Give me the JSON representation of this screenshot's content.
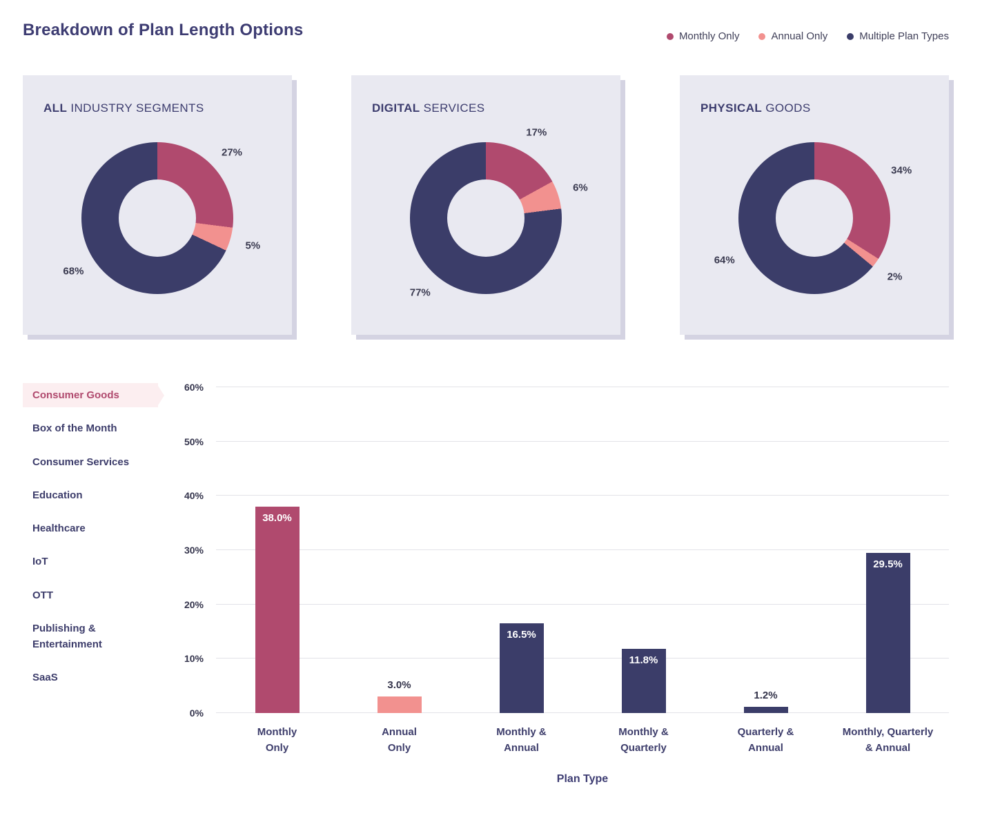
{
  "header": {
    "title": "Breakdown of Plan Length Options"
  },
  "colors": {
    "monthly": "#b04a6e",
    "annual": "#f2918f",
    "multiple": "#3b3d69"
  },
  "legend": [
    {
      "key": "monthly",
      "label": "Monthly Only"
    },
    {
      "key": "annual",
      "label": "Annual Only"
    },
    {
      "key": "multiple",
      "label": "Multiple Plan Types"
    }
  ],
  "donut_charts": [
    {
      "title_emphasis": "ALL",
      "title_rest": " INDUSTRY SEGMENTS",
      "segments": [
        {
          "key": "monthly",
          "value": 27,
          "label": "27%"
        },
        {
          "key": "annual",
          "value": 5,
          "label": "5%"
        },
        {
          "key": "multiple",
          "value": 68,
          "label": "68%"
        }
      ]
    },
    {
      "title_emphasis": "DIGITAL",
      "title_rest": " SERVICES",
      "segments": [
        {
          "key": "monthly",
          "value": 17,
          "label": "17%"
        },
        {
          "key": "annual",
          "value": 6,
          "label": "6%"
        },
        {
          "key": "multiple",
          "value": 77,
          "label": "77%"
        }
      ]
    },
    {
      "title_emphasis": "PHYSICAL",
      "title_rest": " GOODS",
      "segments": [
        {
          "key": "monthly",
          "value": 34,
          "label": "34%"
        },
        {
          "key": "annual",
          "value": 2,
          "label": "2%"
        },
        {
          "key": "multiple",
          "value": 64,
          "label": "64%"
        }
      ]
    }
  ],
  "sidebar": {
    "items": [
      {
        "label": "Consumer Goods",
        "selected": true
      },
      {
        "label": "Box of the Month",
        "selected": false
      },
      {
        "label": "Consumer Services",
        "selected": false
      },
      {
        "label": "Education",
        "selected": false
      },
      {
        "label": "Healthcare",
        "selected": false
      },
      {
        "label": "IoT",
        "selected": false
      },
      {
        "label": "OTT",
        "selected": false
      },
      {
        "label": "Publishing & Entertainment",
        "selected": false
      },
      {
        "label": "SaaS",
        "selected": false
      }
    ]
  },
  "chart_data": {
    "type": "bar",
    "xlabel": "Plan Type",
    "ylim": [
      0,
      60
    ],
    "ytick_step": 10,
    "yticks": [
      "0%",
      "10%",
      "20%",
      "30%",
      "40%",
      "50%",
      "60%"
    ],
    "grid": true,
    "categories": [
      "Monthly\nOnly",
      "Annual\nOnly",
      "Monthly &\nAnnual",
      "Monthly &\nQuarterly",
      "Quarterly &\nAnnual",
      "Monthly, Quarterly\n& Annual"
    ],
    "values": [
      38.0,
      3.0,
      16.5,
      11.8,
      1.2,
      29.5
    ],
    "value_labels": [
      "38.0%",
      "3.0%",
      "16.5%",
      "11.8%",
      "1.2%",
      "29.5%"
    ],
    "bar_color_keys": [
      "monthly",
      "annual",
      "multiple",
      "multiple",
      "multiple",
      "multiple"
    ]
  }
}
